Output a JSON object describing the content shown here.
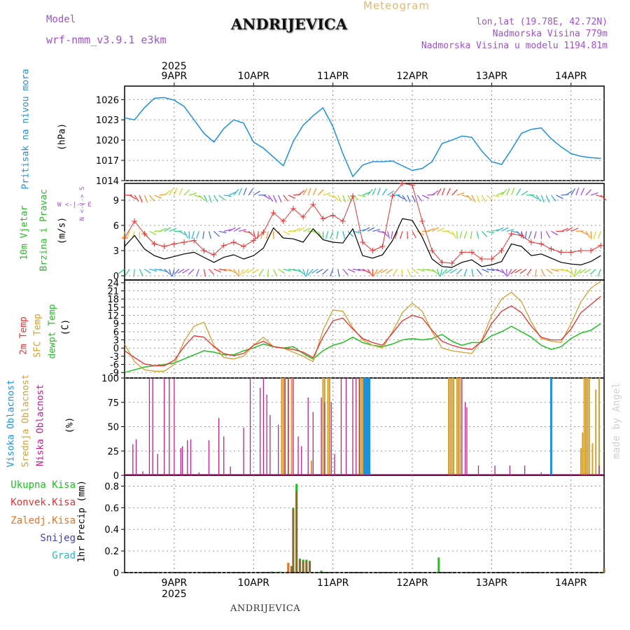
{
  "header": {
    "model_label": "Model",
    "model_name": "wrf-nmm_v3.9.1 e3km",
    "station": "ANDRIJEVICA",
    "product": "Meteogram",
    "coords": "lon,lat (19.78E, 42.72N)",
    "elevation": "Nadmorska Visina 779m",
    "model_elevation": "Nadmorska Visina u modelu 1194.81m",
    "footer_station": "ANDRIJEVICA",
    "credit": "made by Angel"
  },
  "colors": {
    "pressure": "#1e90e0",
    "wind_speed": "#000000",
    "wind_gust": "#e83030",
    "t2m": "#e83030",
    "tsfc": "#d4a030",
    "dew": "#20c020",
    "high_cloud": "#1e90e0",
    "mid_cloud": "#d4a030",
    "low_cloud": "#c0208a",
    "total": "#20c020",
    "conv": "#e83030",
    "frozen": "#f07020",
    "snow": "#4040d0",
    "graupel": "#20c0c0",
    "label_purple": "#a050d0"
  },
  "labels": {
    "pressure_title": "Pritisak na nivou mora",
    "pressure_unit": "(hPa)",
    "wind_title1": "10m Vjetar",
    "wind_title2": "Brzina i Pravac",
    "wind_unit": "(m/s)",
    "compass_ns": "N <-|-> S",
    "compass_we": "W <-|-> E",
    "temp_title1": "2m Temp",
    "temp_title2": "SFC Temp",
    "temp_title3": "dewpt Temp",
    "temp_unit": "(C)",
    "cloud_title1": "Visoka Oblacnost",
    "cloud_title2": "Srednja Oblacnost",
    "cloud_title3": "Niska Oblacnost",
    "cloud_unit": "(%)",
    "precip_legend": [
      "Ukupna Kisa",
      "Konvek.Kisa",
      "Zaledj.Kisa",
      "Snijeg",
      "Grad"
    ],
    "precip_unit": "1hr Precip (mm)"
  },
  "chart_data": [
    {
      "id": "time_axis",
      "type": "table",
      "year": "2025",
      "days": [
        "9APR",
        "10APR",
        "11APR",
        "12APR",
        "13APR",
        "14APR"
      ]
    },
    {
      "id": "pressure",
      "type": "line",
      "ylabel": "Pritisak na nivou mora (hPa)",
      "ylim": [
        1014,
        1028
      ],
      "yticks": [
        1014,
        1017,
        1020,
        1023,
        1026
      ],
      "x": [
        0,
        3,
        6,
        9,
        12,
        15,
        18,
        21,
        24,
        27,
        30,
        33,
        36,
        39,
        42,
        45,
        48,
        51,
        54,
        57,
        60,
        63,
        66,
        69,
        72,
        75,
        78,
        81,
        84,
        87,
        90,
        93,
        96,
        99,
        102,
        105,
        108,
        111,
        114,
        117,
        120,
        123,
        126,
        129,
        132,
        135,
        138,
        141,
        144
      ],
      "values": [
        1023.3,
        1023.0,
        1024.8,
        1026.2,
        1026.3,
        1025.9,
        1025.0,
        1023.0,
        1021.0,
        1019.7,
        1021.7,
        1023.0,
        1022.5,
        1019.7,
        1018.8,
        1017.5,
        1016.2,
        1019.8,
        1022.2,
        1023.6,
        1024.8,
        1022.0,
        1018.0,
        1014.6,
        1016.3,
        1016.8,
        1016.8,
        1016.9,
        1016.2,
        1015.5,
        1015.8,
        1016.8,
        1019.5,
        1020.0,
        1020.6,
        1020.4,
        1018.4,
        1016.8,
        1016.4,
        1018.6,
        1021.0,
        1021.6,
        1021.8,
        1020.2,
        1019.0,
        1018.0,
        1017.6,
        1017.4,
        1017.3
      ]
    },
    {
      "id": "wind",
      "type": "line",
      "ylabel": "10m Vjetar Brzina i Pravac (m/s)",
      "ylim": [
        -0.5,
        11
      ],
      "yticks": [
        0,
        3,
        6,
        9
      ],
      "series": [
        {
          "name": "Wind speed",
          "x": [
            0,
            3,
            6,
            9,
            12,
            15,
            18,
            21,
            24,
            27,
            30,
            33,
            36,
            39,
            42,
            45,
            48,
            51,
            54,
            57,
            60,
            63,
            66,
            69,
            72,
            75,
            78,
            81,
            84,
            87,
            90,
            93,
            96,
            99,
            102,
            105,
            108,
            111,
            114,
            117,
            120,
            123,
            126,
            129,
            132,
            135,
            138,
            141,
            144
          ],
          "values": [
            3.5,
            4.8,
            3.2,
            2.4,
            2.0,
            2.3,
            2.6,
            2.8,
            2.2,
            1.6,
            2.2,
            2.5,
            2.0,
            2.4,
            3.3,
            5.7,
            4.5,
            4.4,
            4.0,
            5.6,
            4.3,
            4.0,
            3.9,
            5.6,
            2.4,
            2.1,
            2.5,
            4.2,
            6.8,
            6.6,
            4.6,
            2.0,
            1.1,
            1.0,
            1.6,
            1.9,
            1.1,
            1.3,
            1.7,
            3.8,
            3.5,
            2.4,
            2.6,
            2.1,
            1.6,
            1.4,
            1.3,
            1.7,
            2.4
          ]
        },
        {
          "name": "Wind gust",
          "x": [
            0,
            3,
            6,
            9,
            12,
            15,
            18,
            21,
            24,
            27,
            30,
            33,
            36,
            39,
            42,
            45,
            48,
            51,
            54,
            57,
            60,
            63,
            66,
            69,
            72,
            75,
            78,
            81,
            84,
            87,
            90,
            93,
            96,
            99,
            102,
            105,
            108,
            111,
            114,
            117,
            120,
            123,
            126,
            129,
            132,
            135,
            138,
            141,
            144
          ],
          "values": [
            4.5,
            6.5,
            5.0,
            3.8,
            3.5,
            3.8,
            4.0,
            4.2,
            3.0,
            2.5,
            3.6,
            4.0,
            3.5,
            4.2,
            5.2,
            7.5,
            6.5,
            8.0,
            7.0,
            8.5,
            6.8,
            7.2,
            6.5,
            9.5,
            4.0,
            3.0,
            3.5,
            9.5,
            11.0,
            10.8,
            6.5,
            3.0,
            1.6,
            1.5,
            2.8,
            2.8,
            2.0,
            2.0,
            3.0,
            5.0,
            4.8,
            4.0,
            3.8,
            3.2,
            2.8,
            2.8,
            3.0,
            3.0,
            3.6
          ]
        }
      ]
    },
    {
      "id": "temperature",
      "type": "line",
      "ylabel": "(C)",
      "ylim": [
        -11,
        25
      ],
      "yticks": [
        -9,
        -6,
        -3,
        0,
        3,
        6,
        9,
        12,
        15,
        18,
        21,
        24
      ],
      "series": [
        {
          "name": "2m Temp",
          "x": [
            0,
            3,
            6,
            9,
            12,
            15,
            18,
            21,
            24,
            27,
            30,
            33,
            36,
            39,
            42,
            45,
            48,
            51,
            54,
            57,
            60,
            63,
            66,
            69,
            72,
            75,
            78,
            81,
            84,
            87,
            90,
            93,
            96,
            99,
            102,
            105,
            108,
            111,
            114,
            117,
            120,
            123,
            126,
            129,
            132,
            135,
            138,
            141,
            144
          ],
          "values": [
            -1.0,
            -3.5,
            -5.8,
            -6.5,
            -6.5,
            -4.5,
            0.5,
            4.5,
            4.0,
            0.5,
            -2.0,
            -2.8,
            -2.0,
            1.0,
            2.5,
            0.5,
            0.0,
            -0.5,
            -1.5,
            -3.5,
            4.0,
            10.0,
            11.0,
            7.0,
            3.5,
            2.0,
            1.0,
            5.5,
            10.0,
            12.0,
            11.0,
            6.5,
            2.5,
            1.0,
            0.0,
            -0.5,
            2.5,
            9.0,
            13.5,
            15.5,
            13.0,
            8.0,
            4.0,
            3.0,
            3.0,
            7.0,
            13.0,
            16.0,
            19.0
          ]
        },
        {
          "name": "SFC Temp",
          "x": [
            0,
            3,
            6,
            9,
            12,
            15,
            18,
            21,
            24,
            27,
            30,
            33,
            36,
            39,
            42,
            45,
            48,
            51,
            54,
            57,
            60,
            63,
            66,
            69,
            72,
            75,
            78,
            81,
            84,
            87,
            90,
            93,
            96,
            99,
            102,
            105,
            108,
            111,
            114,
            117,
            120,
            123,
            126,
            129,
            132,
            135,
            138,
            141,
            144
          ],
          "values": [
            1.5,
            -5.0,
            -8.0,
            -8.5,
            -8.5,
            -6.0,
            2.5,
            8.0,
            9.5,
            1.0,
            -3.5,
            -4.0,
            -3.0,
            1.0,
            4.0,
            0.5,
            0.0,
            -1.5,
            -3.0,
            -5.0,
            6.5,
            14.0,
            13.5,
            7.5,
            3.0,
            1.0,
            0.0,
            6.0,
            13.0,
            16.5,
            13.5,
            6.0,
            0.0,
            -1.0,
            -1.5,
            -2.0,
            3.0,
            12.0,
            18.0,
            20.5,
            17.0,
            9.5,
            3.5,
            2.5,
            2.0,
            9.0,
            17.0,
            22.0,
            24.5
          ]
        },
        {
          "name": "Dewpt Temp",
          "x": [
            0,
            3,
            6,
            9,
            12,
            15,
            18,
            21,
            24,
            27,
            30,
            33,
            36,
            39,
            42,
            45,
            48,
            51,
            54,
            57,
            60,
            63,
            66,
            69,
            72,
            75,
            78,
            81,
            84,
            87,
            90,
            93,
            96,
            99,
            102,
            105,
            108,
            111,
            114,
            117,
            120,
            123,
            126,
            129,
            132,
            135,
            138,
            141,
            144
          ],
          "values": [
            -9.0,
            -8.0,
            -7.0,
            -6.5,
            -6.0,
            -5.5,
            -4.0,
            -2.5,
            -1.0,
            -1.5,
            -2.5,
            -2.5,
            -1.0,
            0.0,
            1.5,
            0.5,
            0.0,
            0.5,
            -2.0,
            -4.0,
            -1.0,
            1.0,
            2.0,
            4.0,
            2.0,
            1.0,
            0.5,
            1.5,
            3.0,
            3.5,
            3.0,
            3.5,
            5.0,
            2.5,
            1.0,
            2.0,
            2.0,
            4.5,
            6.0,
            8.0,
            6.0,
            4.0,
            1.0,
            -0.5,
            0.5,
            3.5,
            5.5,
            6.5,
            9.0
          ]
        }
      ]
    },
    {
      "id": "cloud",
      "type": "bar",
      "ylabel": "(%)",
      "ylim": [
        0,
        100
      ],
      "yticks": [
        0,
        25,
        50,
        75,
        100
      ],
      "series": [
        {
          "name": "Visoka Oblacnost",
          "x": [
            72.5,
            73.0,
            73.5,
            74.0,
            129.0
          ],
          "values": [
            100,
            100,
            100,
            100,
            100
          ]
        },
        {
          "name": "Srednja Oblacnost",
          "x": [
            47.5,
            48.0,
            48.5,
            49.5,
            50.5,
            56.5,
            60.0,
            60.5,
            61.5,
            62.0,
            71.0,
            71.5,
            72.0,
            98.0,
            98.5,
            99.0,
            99.5,
            100.5,
            101.0,
            101.5,
            138.0,
            138.5,
            139.0,
            139.5,
            140.0,
            140.5,
            141.5,
            142.5,
            143.5
          ],
          "values": [
            100,
            100,
            100,
            100,
            100,
            15,
            100,
            100,
            100,
            100,
            100,
            100,
            100,
            100,
            100,
            100,
            100,
            100,
            100,
            100,
            28,
            44,
            100,
            100,
            100,
            100,
            33,
            88,
            100
          ]
        },
        {
          "name": "Niska Oblacnost",
          "x": [
            2.5,
            3.5,
            5.5,
            7.5,
            8.5,
            10.0,
            12.0,
            13.5,
            15.0,
            17.0,
            17.5,
            19.0,
            20.0,
            22.5,
            25.5,
            28.5,
            30.0,
            32.0,
            36.0,
            38.0,
            41.0,
            42.0,
            43.0,
            44.0,
            46.5,
            48.5,
            49.5,
            51.0,
            52.5,
            53.5,
            55.5,
            57.0,
            59.5,
            60.5,
            62.5,
            63.5,
            65.5,
            67.0,
            69.0,
            70.0,
            71.0,
            102.0,
            103.0,
            103.5,
            107.0,
            112.0,
            116.5,
            121.0,
            126.0,
            143.5
          ],
          "values": [
            32,
            37,
            4,
            100,
            100,
            22,
            100,
            100,
            100,
            28,
            30,
            36,
            37,
            3,
            36,
            59,
            40,
            9,
            49,
            100,
            90,
            100,
            83,
            62,
            52,
            100,
            100,
            100,
            40,
            30,
            80,
            65,
            80,
            75,
            75,
            22,
            100,
            100,
            100,
            100,
            100,
            100,
            75,
            70,
            10,
            10,
            10,
            10,
            3,
            10
          ]
        }
      ]
    },
    {
      "id": "precipitation",
      "type": "bar",
      "ylabel": "1hr Precip (mm)",
      "ylim": [
        0,
        0.9
      ],
      "yticks": [
        0,
        0.2,
        0.4,
        0.6,
        0.8
      ],
      "series": [
        {
          "name": "Ukupna Kisa",
          "x": [
            44.5,
            47.0,
            49.5,
            50.5,
            51.0,
            52.0,
            53.0,
            54.0,
            55.0,
            56.0,
            59.5,
            95.0,
            145.0
          ],
          "values": [
            0.01,
            0.01,
            0.09,
            0.06,
            0.6,
            0.82,
            0.13,
            0.12,
            0.12,
            0.11,
            0.02,
            0.14,
            0.02
          ]
        },
        {
          "name": "Konvek.Kisa",
          "x": [
            50.5,
            51.0,
            52.0,
            53.0,
            54.0,
            55.0,
            56.0,
            145.0
          ],
          "values": [
            0.06,
            0.59,
            0.75,
            0.12,
            0.11,
            0.11,
            0.1,
            0.04
          ]
        },
        {
          "name": "Zaledj.Kisa",
          "x": [
            49.5
          ],
          "values": [
            0.09
          ]
        },
        {
          "name": "Snijeg",
          "x": [],
          "values": []
        },
        {
          "name": "Grad",
          "x": [],
          "values": []
        }
      ]
    }
  ]
}
